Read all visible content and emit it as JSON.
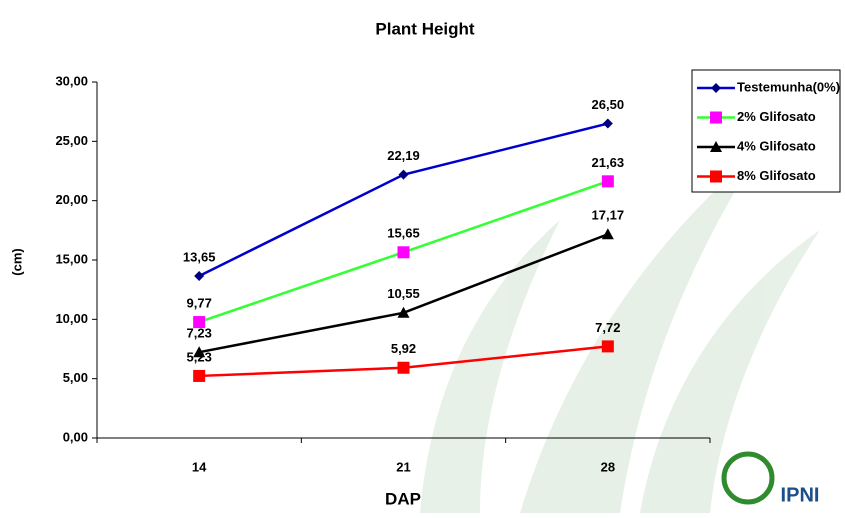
{
  "chart_data": {
    "type": "line",
    "title": "Plant Height",
    "x_label": "DAP",
    "y_label": "(cm)",
    "categories": [
      "14",
      "21",
      "28"
    ],
    "series": [
      {
        "name": "Testemunha(0%)",
        "color": "#0000cc",
        "marker": "diamond",
        "marker_color": "#000080",
        "values": [
          13.65,
          22.19,
          26.5
        ],
        "value_labels": [
          "13,65",
          "22,19",
          "26,50"
        ]
      },
      {
        "name": "2% Glifosato",
        "color": "#33ff33",
        "marker": "square",
        "marker_color": "#ff00ff",
        "values": [
          9.77,
          15.65,
          21.63
        ],
        "value_labels": [
          "9,77",
          "15,65",
          "21,63"
        ]
      },
      {
        "name": "4% Glifosato",
        "color": "#000000",
        "marker": "triangle",
        "marker_color": "#000000",
        "values": [
          7.23,
          10.55,
          17.17
        ],
        "value_labels": [
          "7,23",
          "10,55",
          "17,17"
        ]
      },
      {
        "name": "8% Glifosato",
        "color": "#ff0000",
        "marker": "square",
        "marker_color": "#ff0000",
        "values": [
          5.23,
          5.92,
          7.72
        ],
        "value_labels": [
          "5,23",
          "5,92",
          "7,72"
        ]
      }
    ],
    "ylim": [
      0,
      30
    ],
    "yticks": [
      {
        "value": 0,
        "label": "0,00"
      },
      {
        "value": 5,
        "label": "5,00"
      },
      {
        "value": 10,
        "label": "10,00"
      },
      {
        "value": 15,
        "label": "15,00"
      },
      {
        "value": 20,
        "label": "20,00"
      },
      {
        "value": 25,
        "label": "25,00"
      },
      {
        "value": 30,
        "label": "30,00"
      }
    ],
    "grid": false,
    "legend_position": "upper right",
    "logo_text": "IPNI"
  }
}
